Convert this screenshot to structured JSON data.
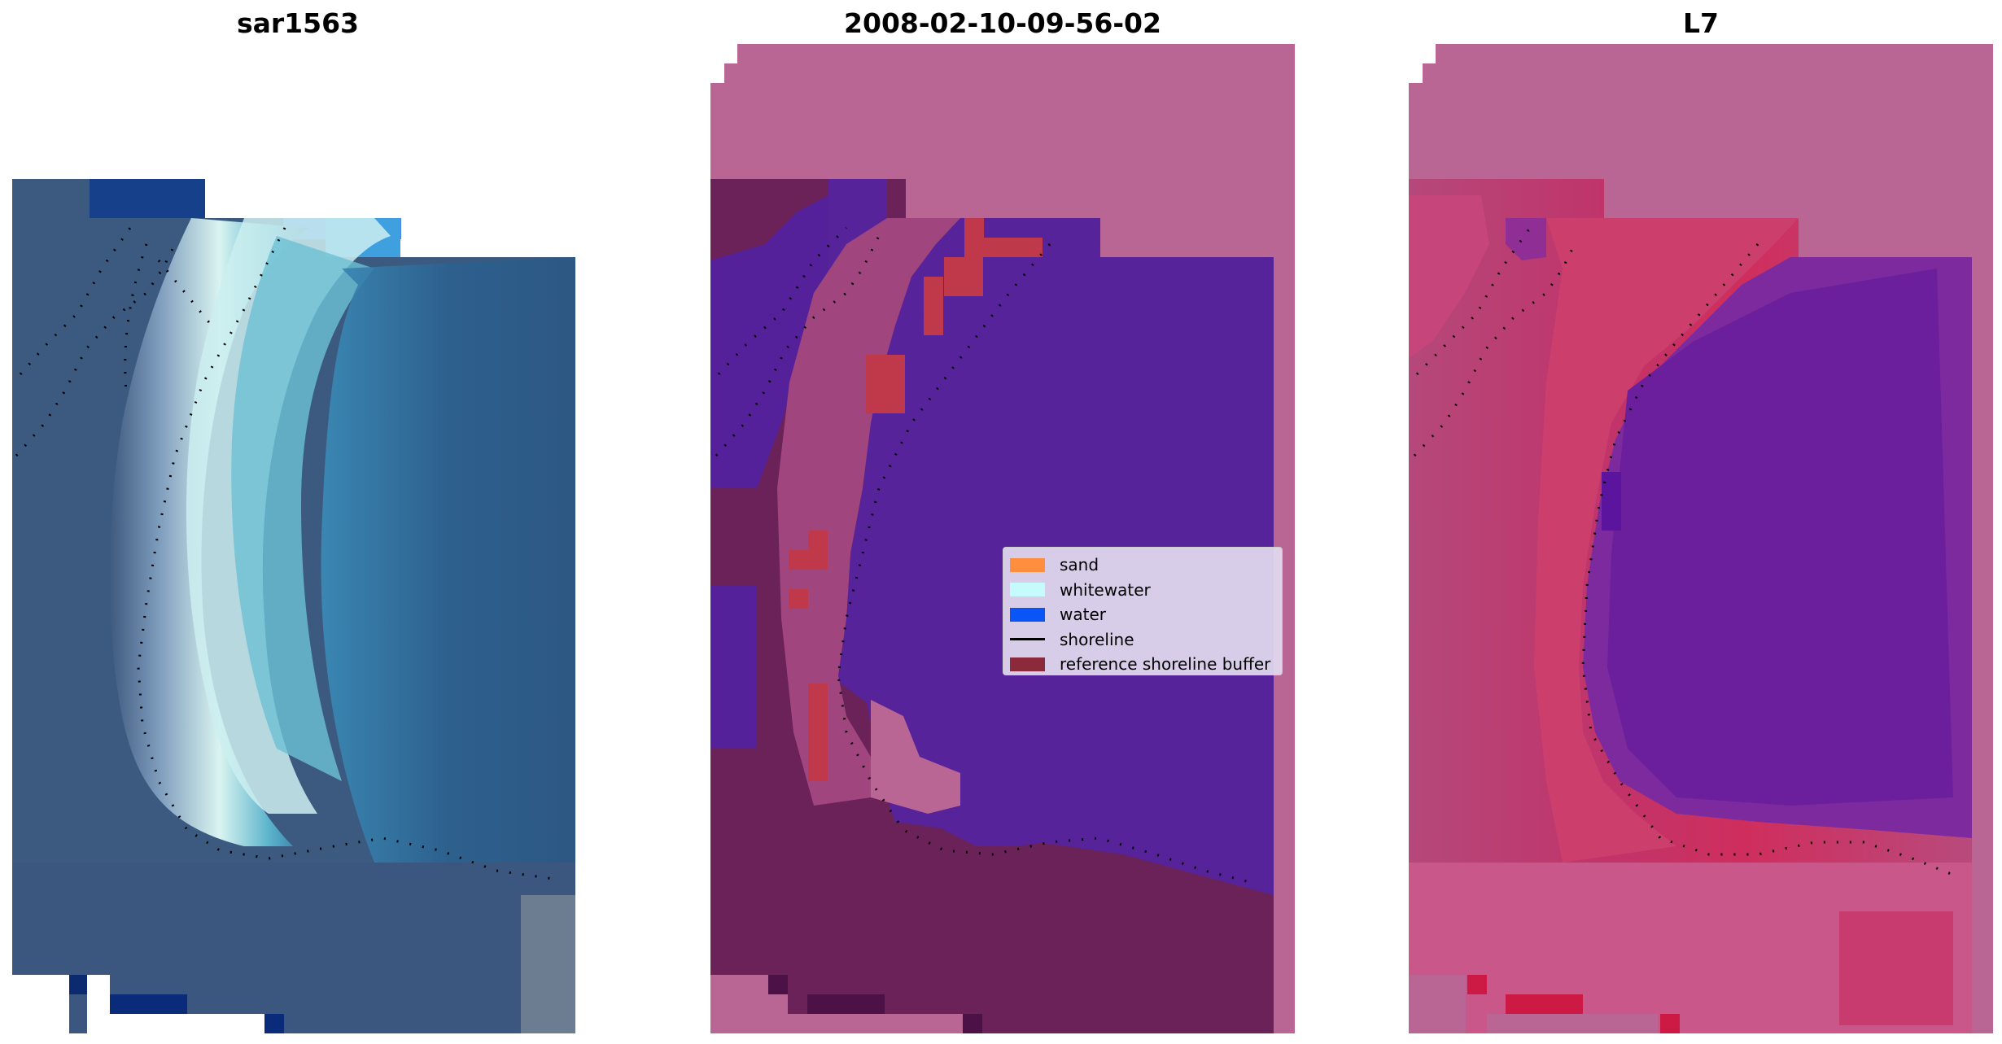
{
  "panels": {
    "left_title": "sar1563",
    "middle_title": "2008-02-10-09-56-02",
    "right_title": "L7"
  },
  "legend": {
    "items": [
      {
        "label": "sand",
        "kind": "patch",
        "color": "#ff8f3f"
      },
      {
        "label": "whitewater",
        "kind": "patch",
        "color": "#c6fbfb"
      },
      {
        "label": "water",
        "kind": "patch",
        "color": "#0a55f5"
      },
      {
        "label": "shoreline",
        "kind": "line",
        "color": "#000000"
      },
      {
        "label": "reference shoreline buffer",
        "kind": "patch",
        "color": "#8b2a3a"
      }
    ]
  },
  "colors": {
    "background": "#ffffff",
    "nodata_pink": "#b96695",
    "water_class": "#56239a",
    "buffer_maroon": "#6a1f55",
    "sand_red": "#c0394a"
  }
}
